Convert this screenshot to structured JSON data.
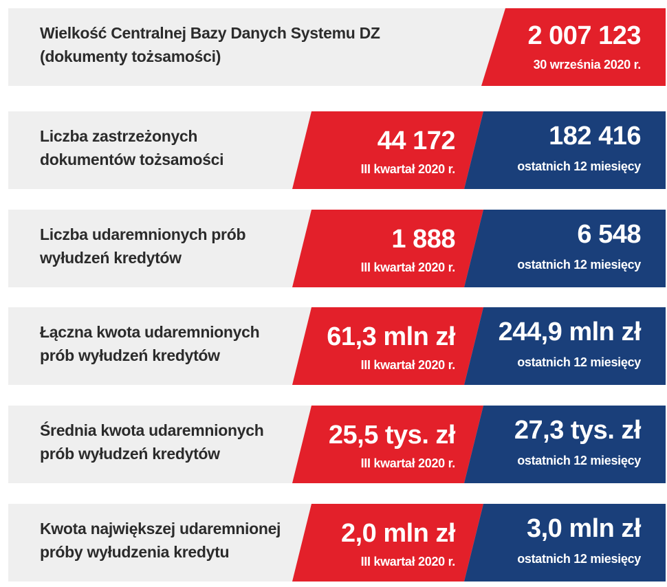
{
  "rows": [
    {
      "label": [
        "Wielkość Centralnej Bazy Danych Systemu DZ",
        "(dokumenty tożsamości)"
      ],
      "red": {
        "value": "2 007 123",
        "sub": "30 września 2020 r."
      }
    },
    {
      "label": [
        "Liczba zastrzeżonych",
        "dokumentów tożsamości"
      ],
      "red": {
        "value": "44 172",
        "sub": "III kwartał 2020 r."
      },
      "blue": {
        "value": "182 416",
        "sub": "ostatnich 12 miesięcy"
      }
    },
    {
      "label": [
        "Liczba udaremnionych prób",
        "wyłudzeń kredytów"
      ],
      "red": {
        "value": "1 888",
        "sub": "III kwartał 2020 r."
      },
      "blue": {
        "value": "6 548",
        "sub": "ostatnich 12 miesięcy"
      }
    },
    {
      "label": [
        "Łączna kwota udaremnionych",
        "prób wyłudzeń kredytów"
      ],
      "red": {
        "value": "61,3 mln zł",
        "sub": "III kwartał 2020 r."
      },
      "blue": {
        "value": "244,9 mln zł",
        "sub": "ostatnich 12 miesięcy"
      }
    },
    {
      "label": [
        "Średnia kwota udaremnionych",
        "prób wyłudzeń kredytów"
      ],
      "red": {
        "value": "25,5 tys. zł",
        "sub": "III kwartał 2020 r."
      },
      "blue": {
        "value": "27,3 tys. zł",
        "sub": "ostatnich 12 miesięcy"
      }
    },
    {
      "label": [
        "Kwota największej udaremnionej",
        "próby wyłudzenia kredytu"
      ],
      "red": {
        "value": "2,0 mln zł",
        "sub": "III kwartał 2020 r."
      },
      "blue": {
        "value": "3,0 mln zł",
        "sub": "ostatnich 12 miesięcy"
      }
    }
  ]
}
